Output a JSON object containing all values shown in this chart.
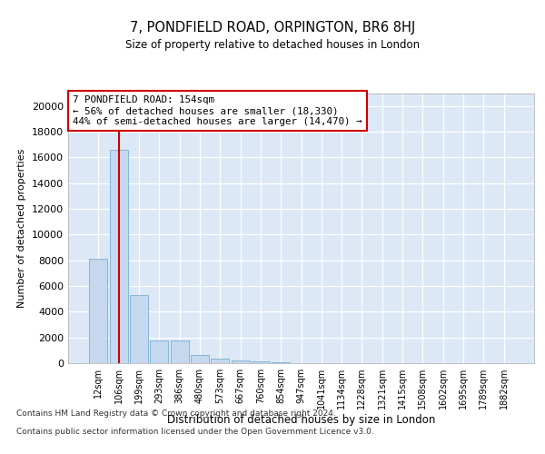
{
  "title": "7, PONDFIELD ROAD, ORPINGTON, BR6 8HJ",
  "subtitle": "Size of property relative to detached houses in London",
  "xlabel": "Distribution of detached houses by size in London",
  "ylabel": "Number of detached properties",
  "categories": [
    "12sqm",
    "106sqm",
    "199sqm",
    "293sqm",
    "386sqm",
    "480sqm",
    "573sqm",
    "667sqm",
    "760sqm",
    "854sqm",
    "947sqm",
    "1041sqm",
    "1134sqm",
    "1228sqm",
    "1321sqm",
    "1415sqm",
    "1508sqm",
    "1602sqm",
    "1695sqm",
    "1789sqm",
    "1882sqm"
  ],
  "bar_values": [
    8100,
    16600,
    5300,
    1750,
    1750,
    650,
    320,
    200,
    150,
    100,
    0,
    0,
    0,
    0,
    0,
    0,
    0,
    0,
    0,
    0,
    0
  ],
  "bar_color": "#c5d8ee",
  "bar_edgecolor": "#7aafd4",
  "vline_x": 1.0,
  "vline_color": "#cc0000",
  "annotation_text": "7 PONDFIELD ROAD: 154sqm\n← 56% of detached houses are smaller (18,330)\n44% of semi-detached houses are larger (14,470) →",
  "annotation_box_facecolor": "#ffffff",
  "annotation_box_edgecolor": "#cc0000",
  "ylim": [
    0,
    21000
  ],
  "yticks": [
    0,
    2000,
    4000,
    6000,
    8000,
    10000,
    12000,
    14000,
    16000,
    18000,
    20000
  ],
  "bg_color": "#dce8f5",
  "grid_color": "#ffffff",
  "footer_line1": "Contains HM Land Registry data © Crown copyright and database right 2024.",
  "footer_line2": "Contains public sector information licensed under the Open Government Licence v3.0."
}
